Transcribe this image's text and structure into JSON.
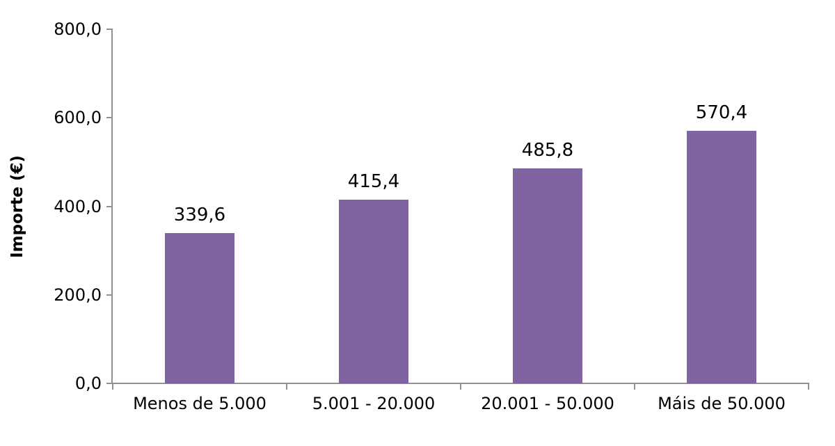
{
  "chart_data": {
    "type": "bar",
    "categories": [
      "Menos de 5.000",
      "5.001 - 20.000",
      "20.001 - 50.000",
      "Máis de 50.000"
    ],
    "values": [
      339.6,
      415.4,
      485.8,
      570.4
    ],
    "data_labels": [
      "339,6",
      "415,4",
      "485,8",
      "570,4"
    ],
    "title": "",
    "xlabel": "",
    "ylabel": "Importe (€)",
    "ylim": [
      0,
      800
    ],
    "yticks": [
      0,
      200,
      400,
      600,
      800
    ],
    "ytick_labels": [
      "0,0",
      "200,0",
      "400,0",
      "600,0",
      "800,0"
    ],
    "grid": false,
    "legend": false,
    "decimal_separator": ",",
    "colors": {
      "bar": "#8064A2",
      "axis": "#919191",
      "text": "#000000",
      "background": "#FFFFFF"
    }
  }
}
